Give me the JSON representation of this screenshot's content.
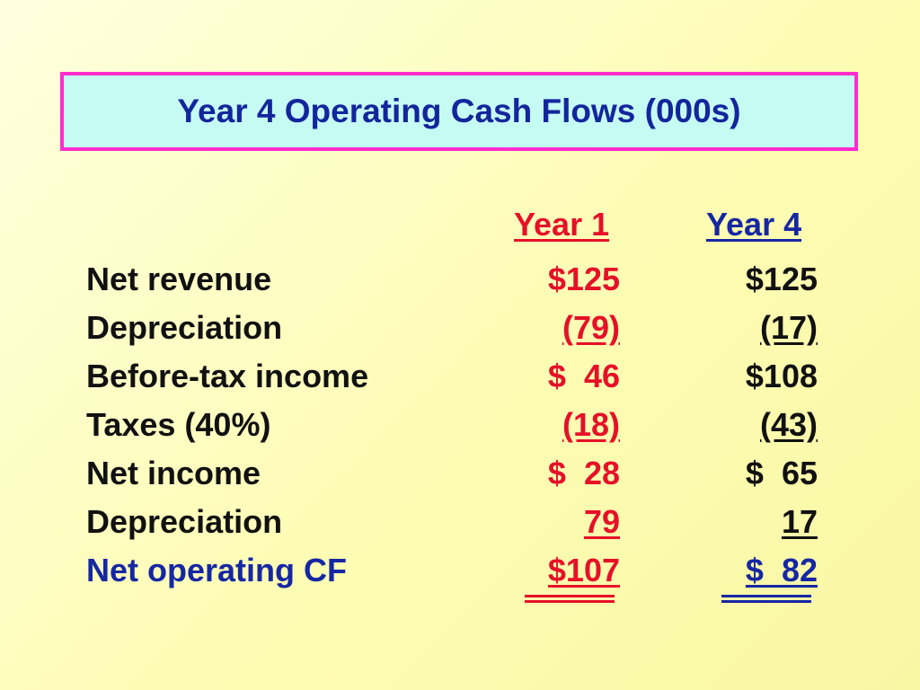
{
  "title": "Year 4 Operating Cash Flows (000s)",
  "columns": [
    "Year 1",
    "Year 4"
  ],
  "rows": [
    {
      "label": "Net revenue",
      "year1": "$125",
      "year4": "$125"
    },
    {
      "label": "Depreciation",
      "year1": "(79)",
      "year4": "(17)"
    },
    {
      "label": "Before-tax income",
      "year1": "$  46",
      "year4": "$108"
    },
    {
      "label": "Taxes (40%)",
      "year1": "(18)",
      "year4": "(43)"
    },
    {
      "label": "Net income",
      "year1": "$  28",
      "year4": "$  65"
    },
    {
      "label": "Depreciation",
      "year1": "79",
      "year4": "17"
    },
    {
      "label": "Net operating CF",
      "year1": "$107",
      "year4": "$  82"
    }
  ],
  "colors": {
    "title_text": "#13269c",
    "title_border": "#ff2ccd",
    "title_bg": "#c6fbf4",
    "year1": "#e61028",
    "year4": "#1627a3",
    "label": "#111111",
    "highlight": "#1627a3"
  }
}
